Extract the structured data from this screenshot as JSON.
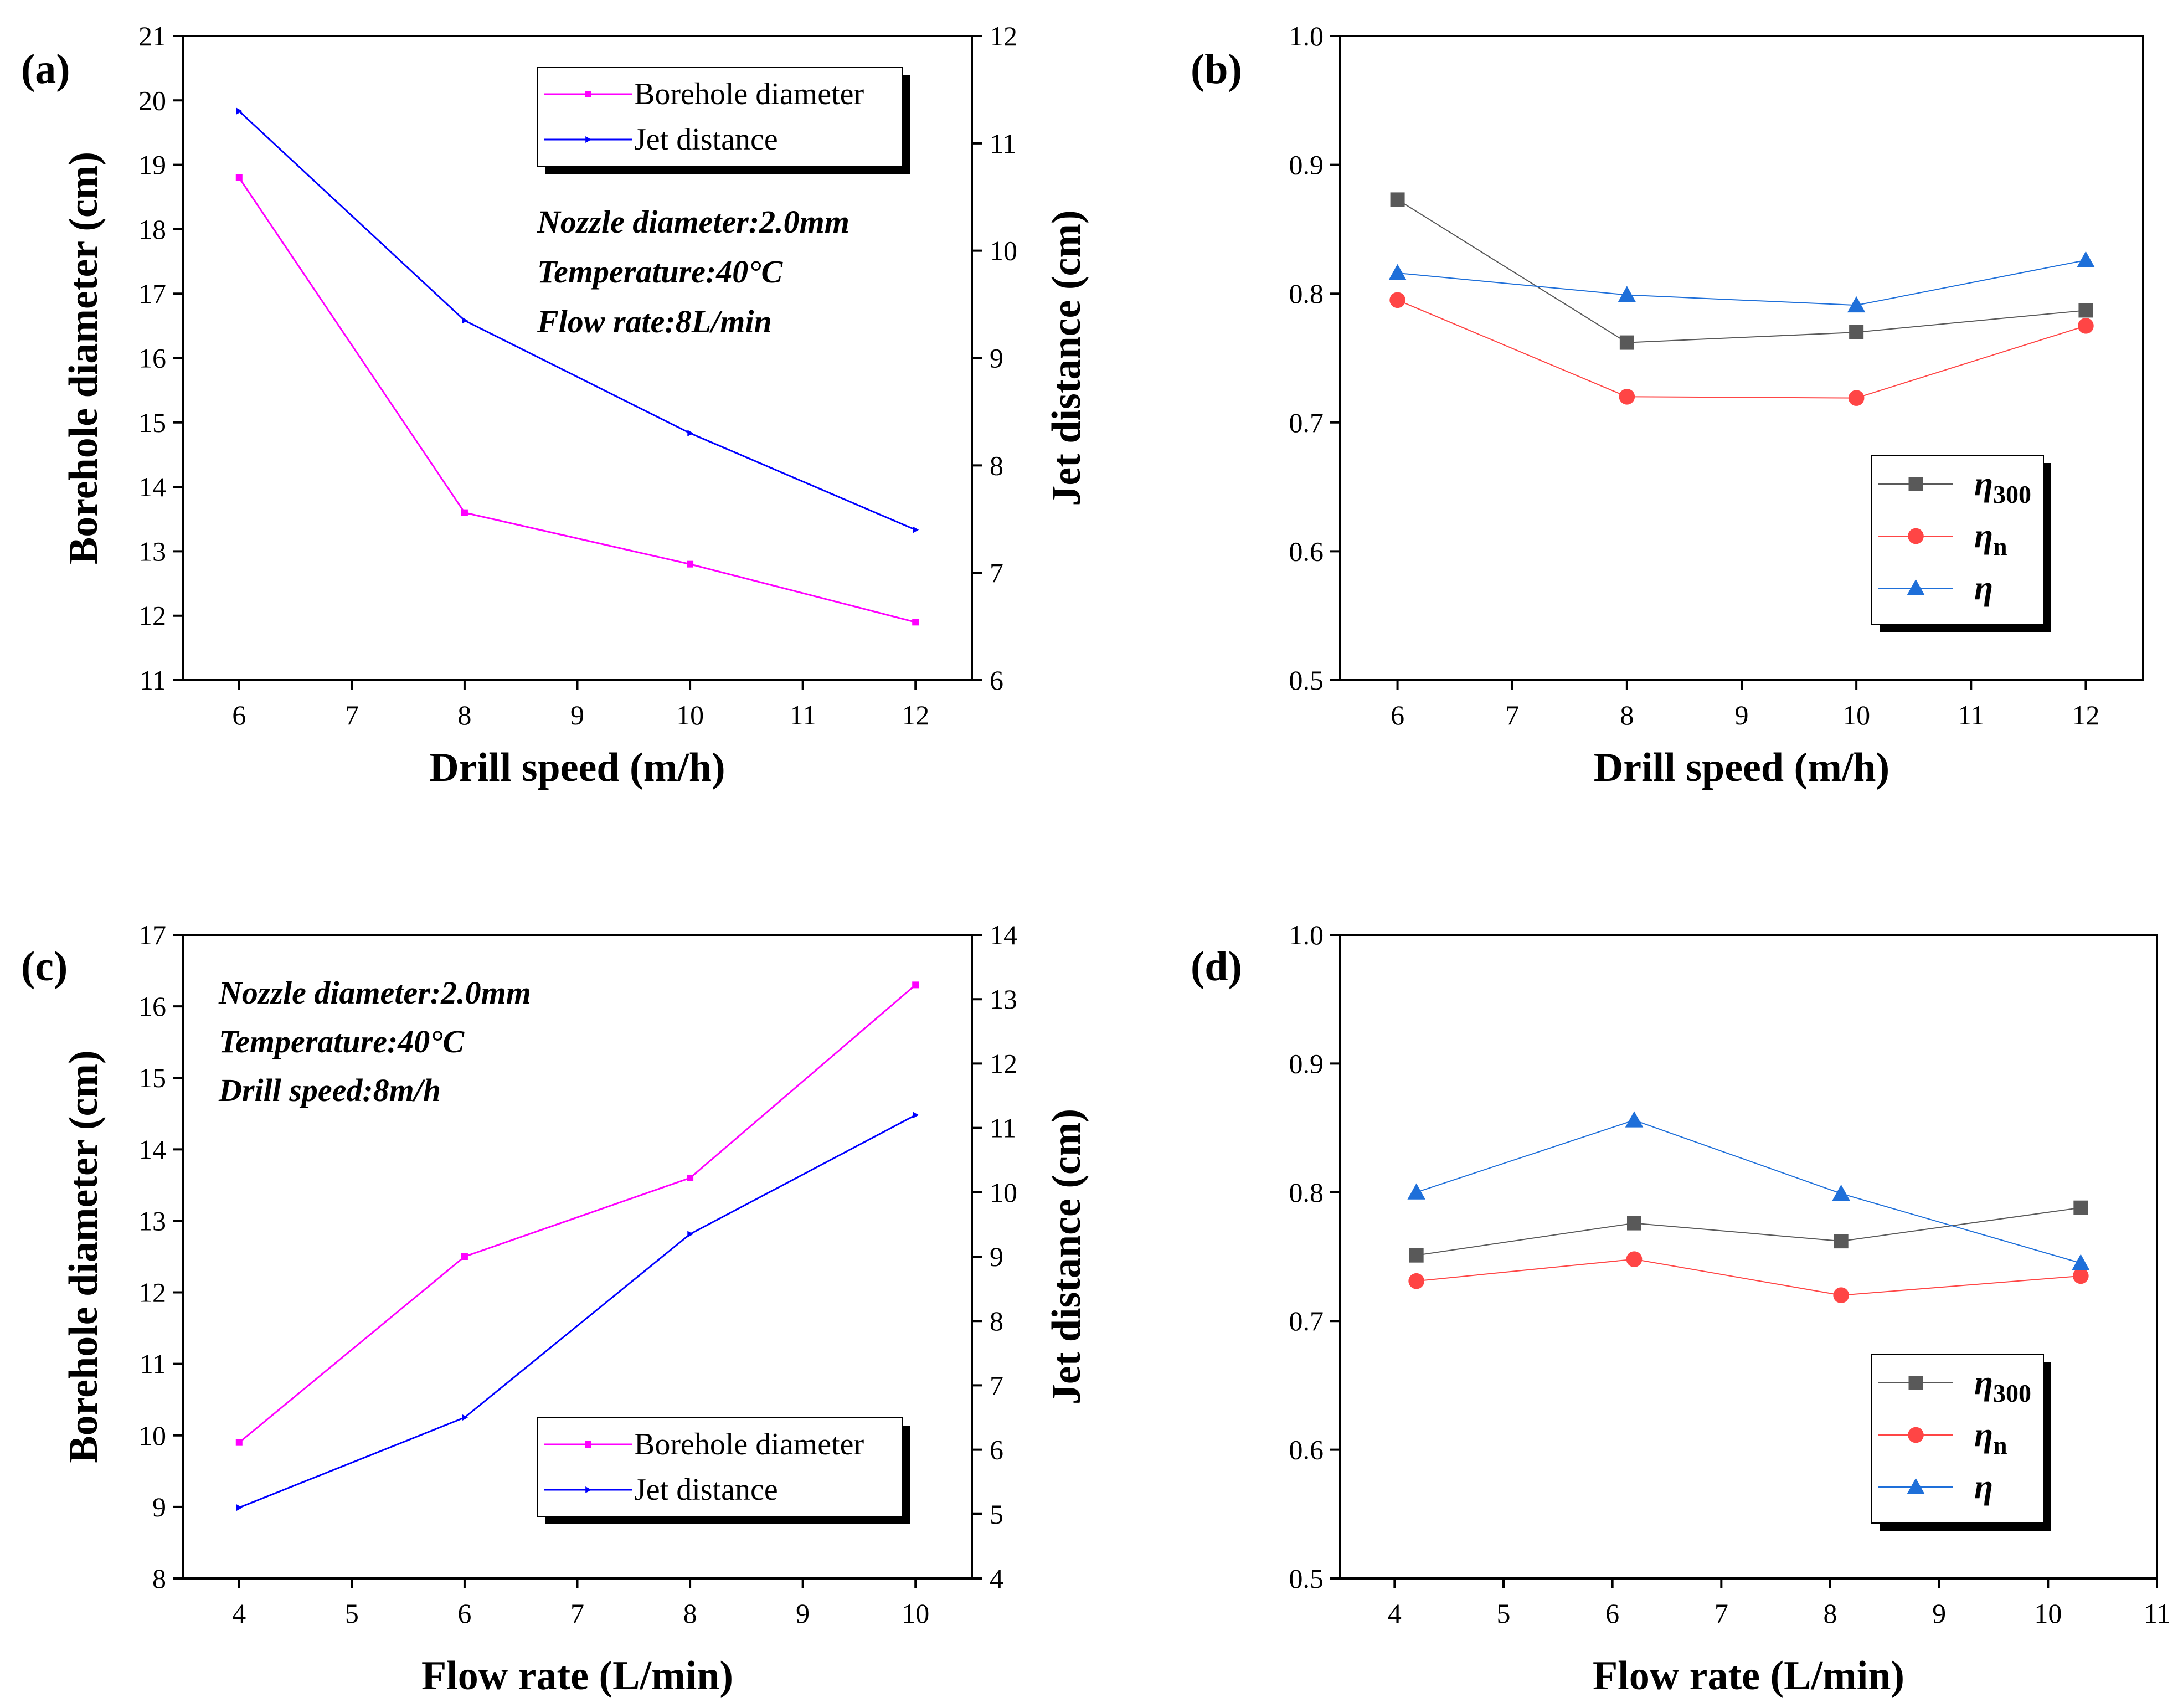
{
  "chart_data": [
    {
      "type": "line",
      "panel_label": "(a)",
      "xlabel": "Drill speed (m/h)",
      "ylabel": "Borehole diameter (cm)",
      "y2label": "Jet distance (cm)",
      "xlim": [
        5.5,
        12.5
      ],
      "xticks": [
        6,
        7,
        8,
        9,
        10,
        11,
        12
      ],
      "ylim": [
        11,
        21
      ],
      "yticks": [
        11,
        12,
        13,
        14,
        15,
        16,
        17,
        18,
        19,
        20,
        21
      ],
      "y2lim": [
        6,
        12
      ],
      "y2ticks": [
        6,
        7,
        8,
        9,
        10,
        11,
        12
      ],
      "annotations": [
        "Nozzle diameter:2.0mm",
        "Temperature:40°C",
        "Flow rate:8L/min"
      ],
      "legend_position": "top-right",
      "series": [
        {
          "name": "Borehole diameter",
          "axis": "left",
          "color": "#ff00ff",
          "marker": "square",
          "x": [
            6,
            8,
            10,
            12
          ],
          "y": [
            18.8,
            13.6,
            12.8,
            11.9
          ]
        },
        {
          "name": "Jet distance",
          "axis": "right",
          "color": "#0000ff",
          "marker": "triangle-right",
          "x": [
            6,
            8,
            10,
            12
          ],
          "y": [
            11.3,
            9.35,
            8.3,
            7.4
          ]
        }
      ]
    },
    {
      "type": "line",
      "panel_label": "(b)",
      "xlabel": "Drill speed (m/h)",
      "ylabel": "",
      "xlim": [
        5.5,
        12.5
      ],
      "xticks": [
        6,
        7,
        8,
        9,
        10,
        11,
        12
      ],
      "ylim": [
        0.5,
        1.0
      ],
      "yticks": [
        "0.5",
        "0.6",
        "0.7",
        "0.8",
        "0.9",
        "1.0"
      ],
      "legend_position": "bottom-right",
      "series": [
        {
          "name": "η",
          "sub": "300",
          "color": "#595959",
          "marker": "square",
          "x": [
            6,
            8,
            10,
            12
          ],
          "y": [
            0.873,
            0.762,
            0.77,
            0.787
          ]
        },
        {
          "name": "η",
          "sub": "n",
          "color": "#ff4545",
          "marker": "circle",
          "x": [
            6,
            8,
            10,
            12
          ],
          "y": [
            0.795,
            0.72,
            0.719,
            0.775
          ]
        },
        {
          "name": "η",
          "sub": "",
          "color": "#1e6fd9",
          "marker": "triangle-up",
          "x": [
            6,
            8,
            10,
            12
          ],
          "y": [
            0.816,
            0.799,
            0.791,
            0.826
          ]
        }
      ]
    },
    {
      "type": "line",
      "panel_label": "(c)",
      "xlabel": "Flow rate (L/min)",
      "ylabel": "Borehole diameter (cm)",
      "y2label": "Jet distance (cm)",
      "xlim": [
        3.5,
        10.5
      ],
      "xticks": [
        4,
        5,
        6,
        7,
        8,
        9,
        10
      ],
      "ylim": [
        8,
        17
      ],
      "yticks": [
        8,
        9,
        10,
        11,
        12,
        13,
        14,
        15,
        16,
        17
      ],
      "y2lim": [
        4,
        14
      ],
      "y2ticks": [
        4,
        5,
        6,
        7,
        8,
        9,
        10,
        11,
        12,
        13,
        14
      ],
      "annotations": [
        "Nozzle diameter:2.0mm",
        "Temperature:40°C",
        "Drill speed:8m/h"
      ],
      "legend_position": "bottom-right",
      "series": [
        {
          "name": "Borehole diameter",
          "axis": "left",
          "color": "#ff00ff",
          "marker": "square",
          "x": [
            4,
            6,
            8,
            10
          ],
          "y": [
            9.9,
            12.5,
            13.6,
            16.3
          ]
        },
        {
          "name": "Jet distance",
          "axis": "right",
          "color": "#0000ff",
          "marker": "triangle-right",
          "x": [
            4,
            6,
            8,
            10
          ],
          "y": [
            5.1,
            6.5,
            9.35,
            11.2
          ]
        }
      ]
    },
    {
      "type": "line",
      "panel_label": "(d)",
      "xlabel": "Flow rate (L/min)",
      "ylabel": "",
      "xlim": [
        3.5,
        11.0
      ],
      "xticks": [
        4,
        5,
        6,
        7,
        8,
        9,
        10,
        11
      ],
      "ylim": [
        0.5,
        1.0
      ],
      "yticks": [
        "0.5",
        "0.6",
        "0.7",
        "0.8",
        "0.9",
        "1.0"
      ],
      "legend_position": "bottom-right",
      "series": [
        {
          "name": "η",
          "sub": "300",
          "color": "#595959",
          "marker": "square",
          "x": [
            4.2,
            6.2,
            8.1,
            10.3
          ],
          "y": [
            0.751,
            0.776,
            0.762,
            0.788
          ]
        },
        {
          "name": "η",
          "sub": "n",
          "color": "#ff4545",
          "marker": "circle",
          "x": [
            4.2,
            6.2,
            8.1,
            10.3
          ],
          "y": [
            0.731,
            0.748,
            0.72,
            0.735
          ]
        },
        {
          "name": "η",
          "sub": "",
          "color": "#1e6fd9",
          "marker": "triangle-up",
          "x": [
            4.2,
            6.2,
            8.1,
            10.3
          ],
          "y": [
            0.8,
            0.856,
            0.799,
            0.745
          ]
        }
      ]
    }
  ]
}
